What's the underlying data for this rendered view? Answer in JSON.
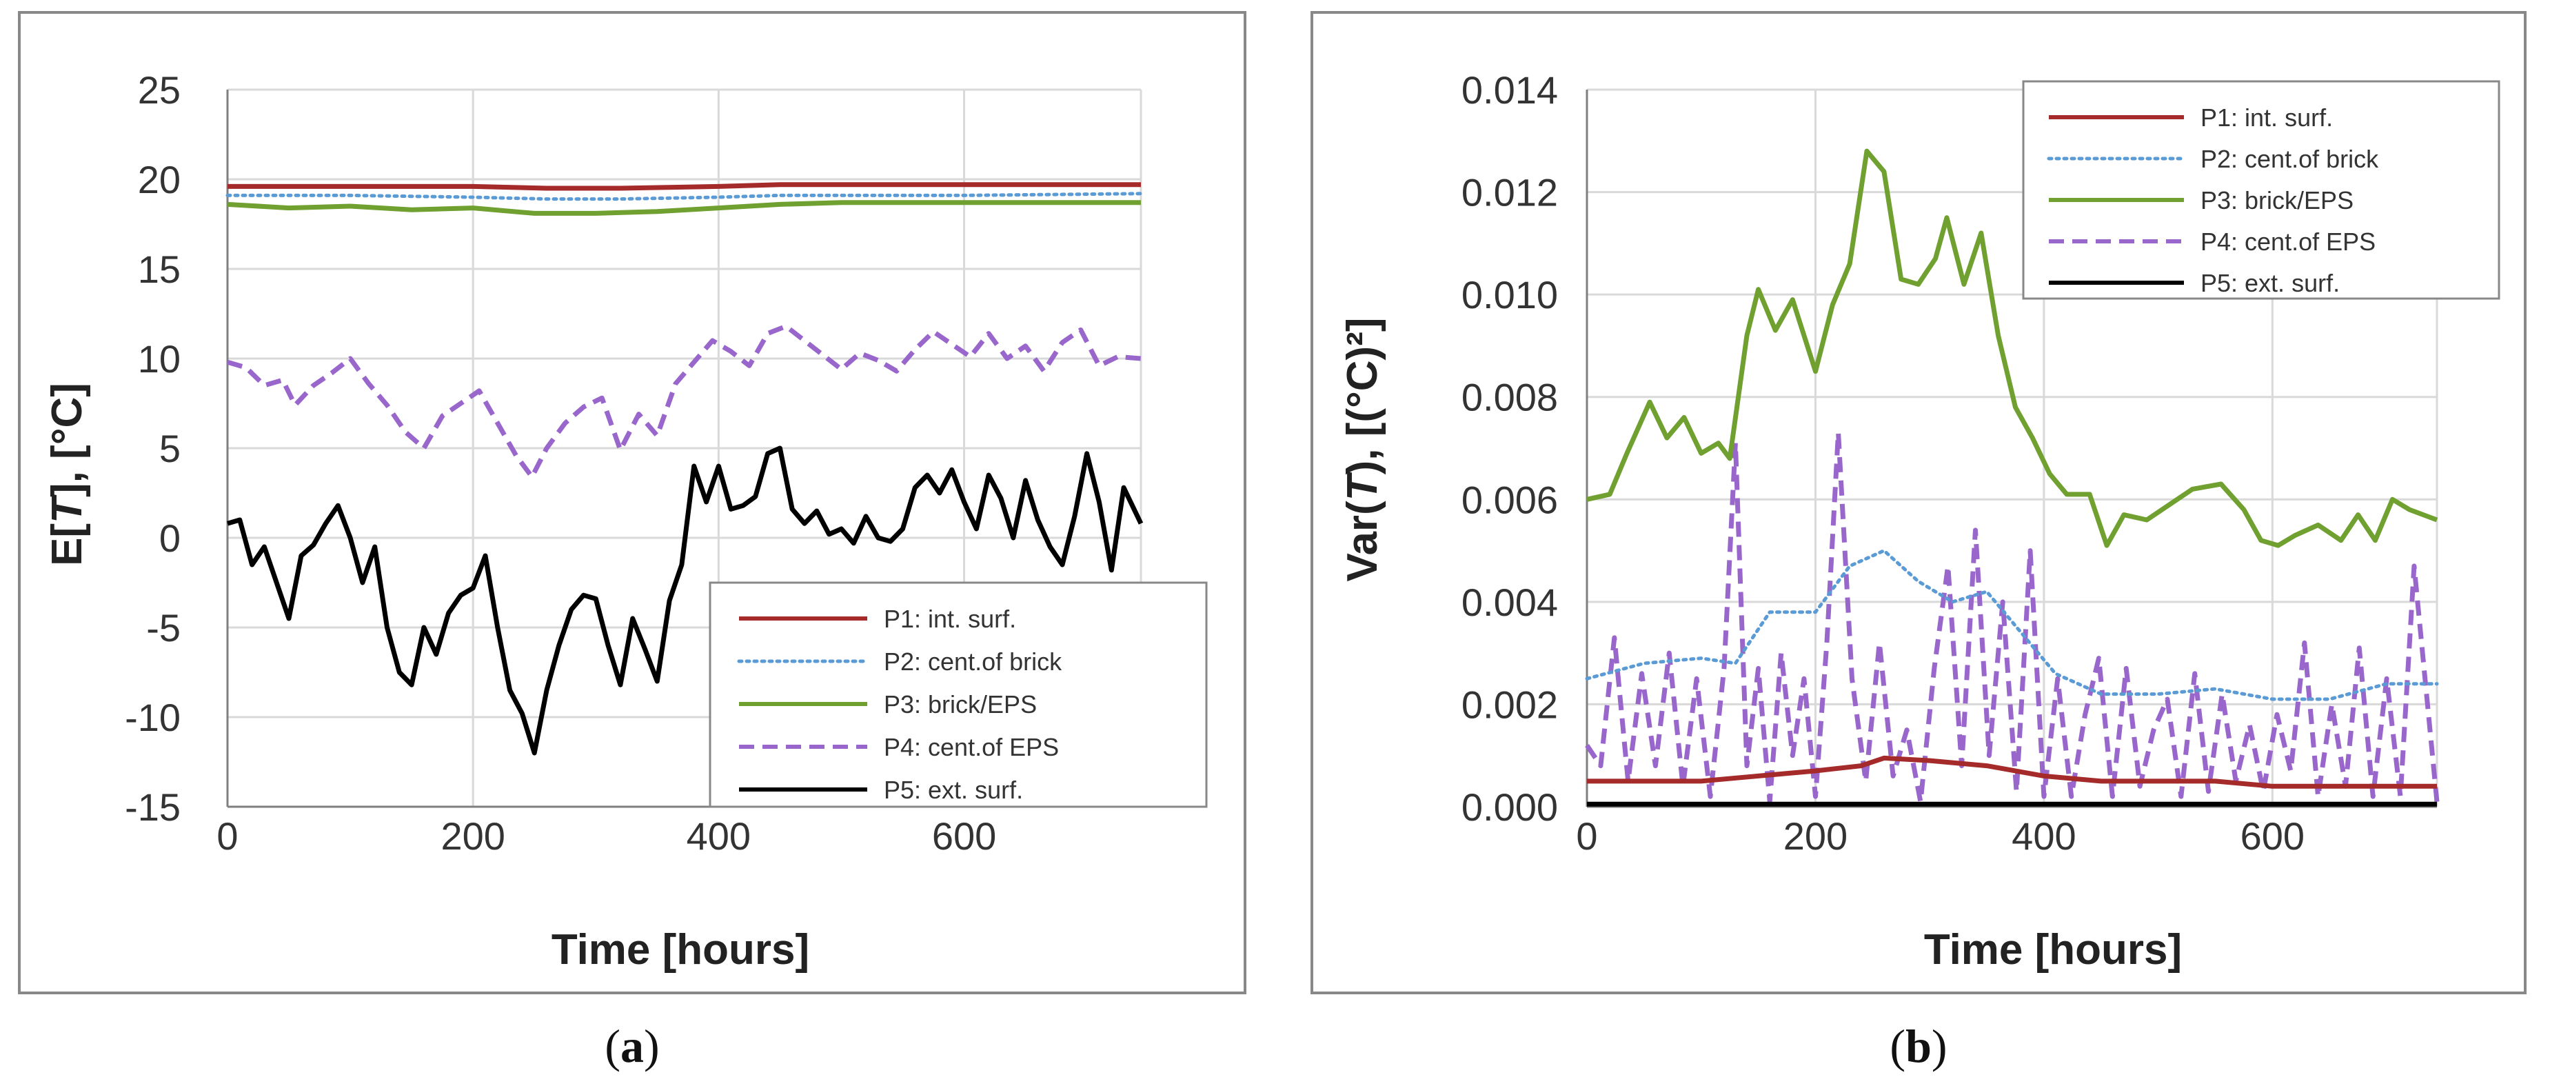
{
  "figure": {
    "captions": [
      "(a)",
      "(b)"
    ],
    "caption_parts": [
      {
        "open": "(",
        "letter": "a",
        "close": ")"
      },
      {
        "open": "(",
        "letter": "b",
        "close": ")"
      }
    ]
  },
  "colors": {
    "P1": "#a52a2a",
    "P2": "#5b9bd5",
    "P3": "#70a030",
    "P4": "#9966cc",
    "P5": "#000000",
    "grid": "#d9d9d9",
    "frame": "#888888"
  },
  "chart_data": [
    {
      "type": "line",
      "panel": "a",
      "ylabel": "E[T], [°C]",
      "ylabel_parts": {
        "pre": "E[",
        "italic": "T",
        "post": "], [°C]"
      },
      "xlabel": "Time [hours]",
      "xlim": [
        0,
        744
      ],
      "ylim": [
        -15,
        25
      ],
      "xticks": [
        0,
        200,
        400,
        600
      ],
      "yticks": [
        -15,
        -10,
        -5,
        0,
        5,
        10,
        15,
        20,
        25
      ],
      "grid": true,
      "legend_position": "bottom-right",
      "series": [
        {
          "key": "P1",
          "name": "P1: int. surf.",
          "style": "solid",
          "x": [
            0,
            100,
            200,
            260,
            320,
            400,
            450,
            500,
            600,
            744
          ],
          "y": [
            19.6,
            19.6,
            19.6,
            19.5,
            19.5,
            19.6,
            19.7,
            19.7,
            19.7,
            19.7
          ]
        },
        {
          "key": "P2",
          "name": "P2: cent.of brick",
          "style": "dotted",
          "x": [
            0,
            100,
            200,
            260,
            320,
            400,
            450,
            500,
            600,
            744
          ],
          "y": [
            19.1,
            19.1,
            19.0,
            18.9,
            18.9,
            19.0,
            19.1,
            19.1,
            19.1,
            19.2
          ]
        },
        {
          "key": "P3",
          "name": "P3: brick/EPS",
          "style": "solid",
          "x": [
            0,
            50,
            100,
            150,
            200,
            250,
            300,
            350,
            400,
            450,
            500,
            600,
            744
          ],
          "y": [
            18.6,
            18.4,
            18.5,
            18.3,
            18.4,
            18.1,
            18.1,
            18.2,
            18.4,
            18.6,
            18.7,
            18.7,
            18.7
          ]
        },
        {
          "key": "P4",
          "name": "P4: cent.of EPS",
          "style": "dashed",
          "x": [
            0,
            15,
            30,
            45,
            55,
            70,
            85,
            100,
            115,
            130,
            145,
            160,
            175,
            190,
            205,
            220,
            235,
            248,
            260,
            275,
            290,
            305,
            320,
            335,
            350,
            365,
            380,
            395,
            410,
            425,
            440,
            455,
            470,
            485,
            500,
            515,
            530,
            545,
            560,
            575,
            590,
            605,
            620,
            635,
            650,
            665,
            680,
            695,
            710,
            725,
            744
          ],
          "y": [
            9.8,
            9.5,
            8.5,
            8.8,
            7.4,
            8.5,
            9.2,
            10.0,
            8.6,
            7.4,
            5.9,
            5.0,
            6.8,
            7.5,
            8.2,
            6.4,
            4.6,
            3.4,
            5.0,
            6.4,
            7.3,
            7.8,
            4.9,
            6.9,
            5.7,
            8.6,
            9.8,
            11.0,
            10.4,
            9.6,
            11.4,
            11.8,
            11.0,
            10.2,
            9.4,
            10.3,
            9.9,
            9.3,
            10.5,
            11.5,
            10.8,
            10.1,
            11.4,
            10.0,
            10.7,
            9.3,
            10.9,
            11.6,
            9.6,
            10.1,
            10.0
          ]
        },
        {
          "key": "P5",
          "name": "P5: ext. surf.",
          "style": "solid",
          "x": [
            0,
            10,
            20,
            30,
            40,
            50,
            60,
            70,
            80,
            90,
            100,
            110,
            120,
            130,
            140,
            150,
            160,
            170,
            180,
            190,
            200,
            210,
            220,
            230,
            240,
            250,
            260,
            270,
            280,
            290,
            300,
            310,
            320,
            330,
            340,
            350,
            360,
            370,
            380,
            390,
            400,
            410,
            420,
            430,
            440,
            450,
            460,
            470,
            480,
            490,
            500,
            510,
            520,
            530,
            540,
            550,
            560,
            570,
            580,
            590,
            600,
            610,
            620,
            630,
            640,
            650,
            660,
            670,
            680,
            690,
            700,
            710,
            720,
            730,
            744
          ],
          "y": [
            0.8,
            1.0,
            -1.5,
            -0.5,
            -2.5,
            -4.5,
            -1.0,
            -0.4,
            0.8,
            1.8,
            0.0,
            -2.5,
            -0.5,
            -5.0,
            -7.5,
            -8.2,
            -5.0,
            -6.5,
            -4.2,
            -3.2,
            -2.8,
            -1.0,
            -5.0,
            -8.5,
            -9.8,
            -12.0,
            -8.5,
            -6.0,
            -4.0,
            -3.2,
            -3.4,
            -6.0,
            -8.2,
            -4.5,
            -6.2,
            -8.0,
            -3.5,
            -1.5,
            4.0,
            2.0,
            4.0,
            1.6,
            1.8,
            2.3,
            4.7,
            5.0,
            1.6,
            0.8,
            1.5,
            0.2,
            0.5,
            -0.3,
            1.2,
            0.0,
            -0.2,
            0.5,
            2.8,
            3.5,
            2.5,
            3.8,
            2.0,
            0.5,
            3.5,
            2.2,
            0.0,
            3.2,
            1.0,
            -0.5,
            -1.5,
            1.2,
            4.7,
            2.0,
            -1.8,
            2.8,
            0.8
          ]
        }
      ]
    },
    {
      "type": "line",
      "panel": "b",
      "ylabel": "Var(T), [(°C)²]",
      "ylabel_parts": {
        "pre": "Var(",
        "italic": "T",
        "post": "), [(°C)²]"
      },
      "xlabel": "Time [hours]",
      "xlim": [
        0,
        744
      ],
      "ylim": [
        0.0,
        0.014
      ],
      "xticks": [
        0,
        200,
        400,
        600
      ],
      "yticks": [
        "0.000",
        "0.002",
        "0.004",
        "0.006",
        "0.008",
        "0.010",
        "0.012",
        "0.014"
      ],
      "grid": true,
      "legend_position": "top-right",
      "series": [
        {
          "key": "P1",
          "name": "P1: int. surf.",
          "style": "solid",
          "x": [
            0,
            100,
            150,
            200,
            240,
            260,
            300,
            350,
            400,
            450,
            500,
            550,
            600,
            650,
            700,
            744
          ],
          "y": [
            0.0005,
            0.0005,
            0.0006,
            0.0007,
            0.0008,
            0.00095,
            0.0009,
            0.0008,
            0.0006,
            0.0005,
            0.0005,
            0.0005,
            0.0004,
            0.0004,
            0.0004,
            0.0004
          ]
        },
        {
          "key": "P2",
          "name": "P2: cent.of brick",
          "style": "dotted",
          "x": [
            0,
            50,
            100,
            130,
            160,
            200,
            230,
            260,
            290,
            320,
            350,
            380,
            410,
            450,
            500,
            550,
            600,
            650,
            700,
            744
          ],
          "y": [
            0.0025,
            0.0028,
            0.0029,
            0.0028,
            0.0038,
            0.0038,
            0.0047,
            0.005,
            0.0044,
            0.004,
            0.0042,
            0.0034,
            0.0026,
            0.0022,
            0.0022,
            0.0023,
            0.0021,
            0.0021,
            0.0024,
            0.0024
          ]
        },
        {
          "key": "P3",
          "name": "P3: brick/EPS",
          "style": "solid",
          "x": [
            0,
            20,
            35,
            55,
            70,
            85,
            100,
            115,
            125,
            140,
            150,
            165,
            180,
            200,
            215,
            230,
            245,
            260,
            275,
            290,
            305,
            315,
            330,
            345,
            360,
            375,
            390,
            405,
            420,
            440,
            455,
            470,
            490,
            510,
            530,
            555,
            575,
            590,
            605,
            620,
            640,
            660,
            675,
            690,
            705,
            720,
            744
          ],
          "y": [
            0.006,
            0.0061,
            0.0069,
            0.0079,
            0.0072,
            0.0076,
            0.0069,
            0.0071,
            0.0068,
            0.0092,
            0.0101,
            0.0093,
            0.0099,
            0.0085,
            0.0098,
            0.0106,
            0.0128,
            0.0124,
            0.0103,
            0.0102,
            0.0107,
            0.0115,
            0.0102,
            0.0112,
            0.0092,
            0.0078,
            0.0072,
            0.0065,
            0.0061,
            0.0061,
            0.0051,
            0.0057,
            0.0056,
            0.0059,
            0.0062,
            0.0063,
            0.0058,
            0.0052,
            0.0051,
            0.0053,
            0.0055,
            0.0052,
            0.0057,
            0.0052,
            0.006,
            0.0058,
            0.0056
          ]
        },
        {
          "key": "P4",
          "name": "P4: cent.of EPS",
          "style": "dashed",
          "x": [
            0,
            12,
            24,
            36,
            48,
            60,
            72,
            84,
            96,
            108,
            120,
            130,
            140,
            150,
            160,
            170,
            180,
            190,
            200,
            210,
            220,
            232,
            244,
            256,
            268,
            280,
            292,
            304,
            316,
            328,
            340,
            352,
            364,
            376,
            388,
            400,
            412,
            424,
            436,
            448,
            460,
            472,
            484,
            496,
            508,
            520,
            532,
            544,
            556,
            568,
            580,
            592,
            604,
            616,
            628,
            640,
            652,
            664,
            676,
            688,
            700,
            712,
            724,
            744
          ],
          "y": [
            0.0012,
            0.0008,
            0.0033,
            0.0005,
            0.0026,
            0.0008,
            0.003,
            0.0004,
            0.0025,
            0.0002,
            0.0027,
            0.0071,
            0.0008,
            0.0027,
            0.0001,
            0.003,
            0.001,
            0.0025,
            0.0002,
            0.0032,
            0.0073,
            0.0025,
            0.0005,
            0.0032,
            0.0006,
            0.0015,
            0.0001,
            0.0027,
            0.0047,
            0.0008,
            0.0054,
            0.001,
            0.004,
            0.0003,
            0.005,
            0.0002,
            0.0025,
            0.0002,
            0.0018,
            0.0029,
            0.0002,
            0.0027,
            0.0004,
            0.0015,
            0.0021,
            0.0002,
            0.0026,
            0.0003,
            0.0022,
            0.0005,
            0.0016,
            0.0003,
            0.0018,
            0.0007,
            0.0032,
            0.0002,
            0.002,
            0.0004,
            0.0031,
            0.0002,
            0.0025,
            0.0002,
            0.0047,
            0.0001
          ]
        },
        {
          "key": "P5",
          "name": "P5: ext. surf.",
          "style": "solid",
          "x": [
            0,
            200,
            400,
            600,
            744
          ],
          "y": [
            5e-05,
            5e-05,
            5e-05,
            5e-05,
            5e-05
          ]
        }
      ]
    }
  ]
}
